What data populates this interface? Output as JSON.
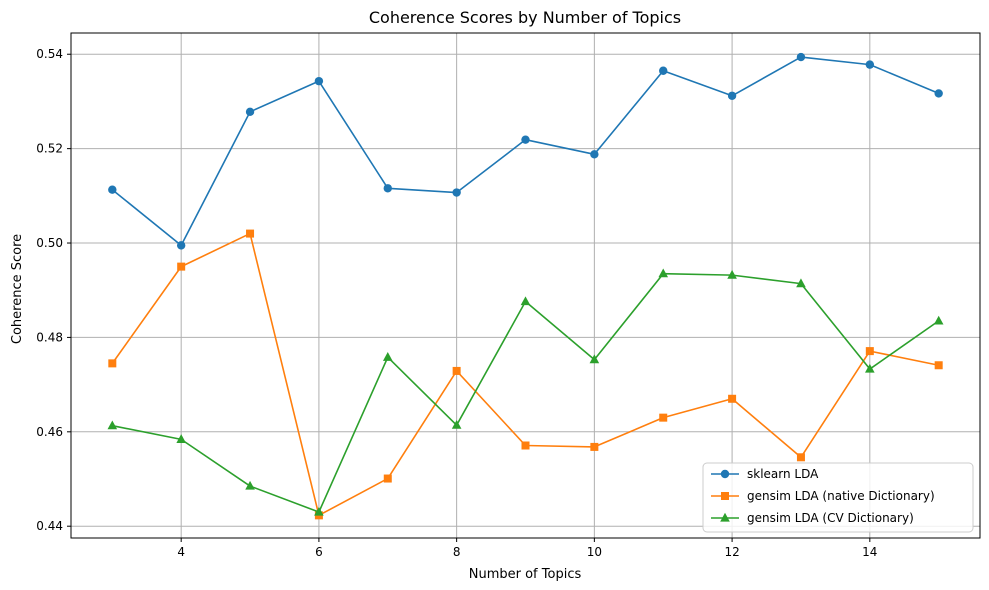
{
  "chart_data": {
    "type": "line",
    "title": "Coherence Scores by Number of Topics",
    "xlabel": "Number of Topics",
    "ylabel": "Coherence Score",
    "xlim": [
      2.4,
      15.6
    ],
    "ylim": [
      0.4375,
      0.5445
    ],
    "x_ticks": [
      4,
      6,
      8,
      10,
      12,
      14
    ],
    "y_ticks": [
      0.44,
      0.46,
      0.48,
      0.5,
      0.52,
      0.54
    ],
    "y_tick_labels": [
      "0.44",
      "0.46",
      "0.48",
      "0.50",
      "0.52",
      "0.54"
    ],
    "grid": true,
    "legend_position": "lower-right",
    "x": [
      3,
      4,
      5,
      6,
      7,
      8,
      9,
      10,
      11,
      12,
      13,
      14,
      15
    ],
    "series": [
      {
        "name": "sklearn LDA",
        "color": "#1f77b4",
        "marker": "circle",
        "values": [
          0.5113,
          0.4995,
          0.5278,
          0.5343,
          0.5116,
          0.5107,
          0.5219,
          0.5188,
          0.5365,
          0.5312,
          0.5394,
          0.5378,
          0.5317
        ]
      },
      {
        "name": "gensim LDA (native Dictionary)",
        "color": "#ff7f0e",
        "marker": "square",
        "values": [
          0.4745,
          0.495,
          0.502,
          0.4423,
          0.4501,
          0.4729,
          0.4571,
          0.4568,
          0.463,
          0.467,
          0.4546,
          0.4771,
          0.4741
        ]
      },
      {
        "name": "gensim LDA (CV Dictionary)",
        "color": "#2ca02c",
        "marker": "triangle",
        "values": [
          0.4613,
          0.4584,
          0.4485,
          0.443,
          0.4758,
          0.4614,
          0.4876,
          0.4753,
          0.4935,
          0.4932,
          0.4914,
          0.4733,
          0.4835
        ]
      }
    ]
  }
}
